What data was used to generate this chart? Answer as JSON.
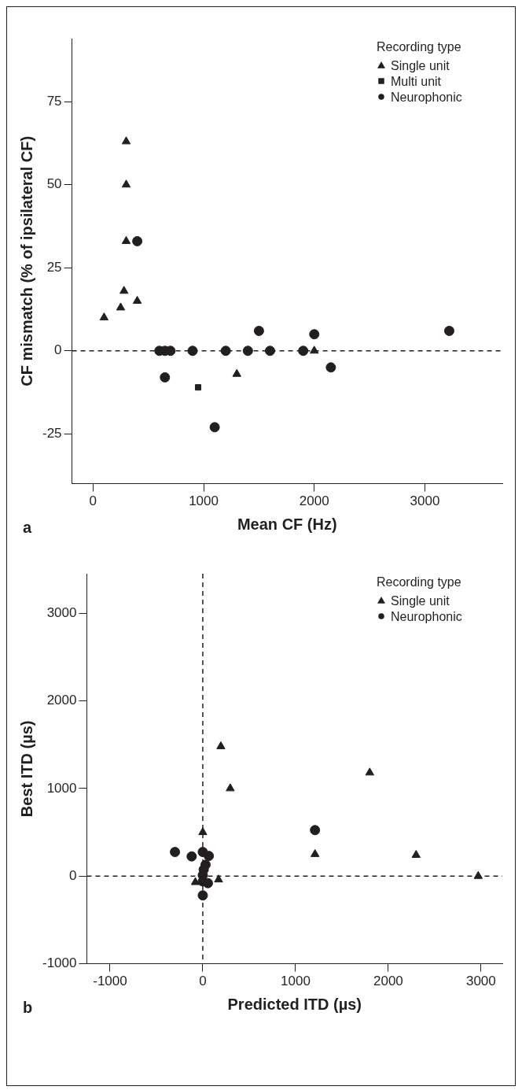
{
  "chart_data": [
    {
      "type": "scatter",
      "xlabel": "Mean CF (Hz)",
      "ylabel": "CF mismatch (% of ipsilateral CF)",
      "legend_title": "Recording type",
      "legend": "top right",
      "grid": false,
      "annotations": [
        "a"
      ],
      "xlim": [
        -190,
        3700
      ],
      "ylim": [
        -40,
        94
      ],
      "xticks": [
        0,
        1000,
        2000,
        3000
      ],
      "yticks": [
        -25,
        0,
        25,
        50,
        75
      ],
      "ref_lines": [
        {
          "axis": "y",
          "value": 0,
          "line_style": "dashed",
          "color": "#231f20"
        }
      ],
      "series": [
        {
          "name": "Single unit",
          "color": "#231f20",
          "marker": "triangle",
          "x": [
            300,
            300,
            300,
            280,
            250,
            400,
            100,
            1300,
            2000
          ],
          "values": [
            63,
            50,
            33,
            18,
            13,
            15,
            10,
            -7,
            0
          ]
        },
        {
          "name": "Multi unit",
          "color": "#231f20",
          "marker": "square",
          "x": [
            950
          ],
          "values": [
            -11
          ]
        },
        {
          "name": "Neurophonic",
          "color": "#231f20",
          "marker": "circle",
          "x": [
            400,
            600,
            650,
            700,
            900,
            1200,
            1400,
            1600,
            1900,
            650,
            1100,
            1500,
            2000,
            2150,
            3220
          ],
          "values": [
            33,
            0,
            0,
            0,
            0,
            0,
            0,
            0,
            0,
            -8,
            -23,
            6,
            5,
            -5,
            6
          ]
        }
      ]
    },
    {
      "type": "scatter",
      "xlabel": "Predicted ITD (µs)",
      "ylabel": "Best ITD (µs)",
      "legend_title": "Recording type",
      "legend": "top right",
      "grid": false,
      "annotations": [
        "b"
      ],
      "xlim": [
        -1250,
        3230
      ],
      "ylim": [
        -1000,
        3450
      ],
      "xticks": [
        -1000,
        0,
        1000,
        2000,
        3000
      ],
      "yticks": [
        -1000,
        0,
        1000,
        2000,
        3000
      ],
      "ref_lines": [
        {
          "axis": "y",
          "value": 0,
          "line_style": "dashed",
          "color": "#231f20"
        },
        {
          "axis": "x",
          "value": 0,
          "line_style": "dashed",
          "color": "#231f20"
        }
      ],
      "series": [
        {
          "name": "Single unit",
          "color": "#231f20",
          "marker": "triangle",
          "x": [
            195,
            296,
            1800,
            1210,
            2300,
            2970,
            0,
            -80,
            170
          ],
          "values": [
            1480,
            1000,
            1180,
            250,
            240,
            0,
            500,
            -70,
            -40
          ]
        },
        {
          "name": "Neurophonic",
          "color": "#231f20",
          "marker": "circle",
          "x": [
            -300,
            -120,
            0,
            65,
            30,
            10,
            0,
            0,
            55,
            0,
            1210
          ],
          "values": [
            275,
            225,
            275,
            230,
            130,
            75,
            10,
            -60,
            -80,
            -220,
            525
          ]
        }
      ]
    }
  ]
}
